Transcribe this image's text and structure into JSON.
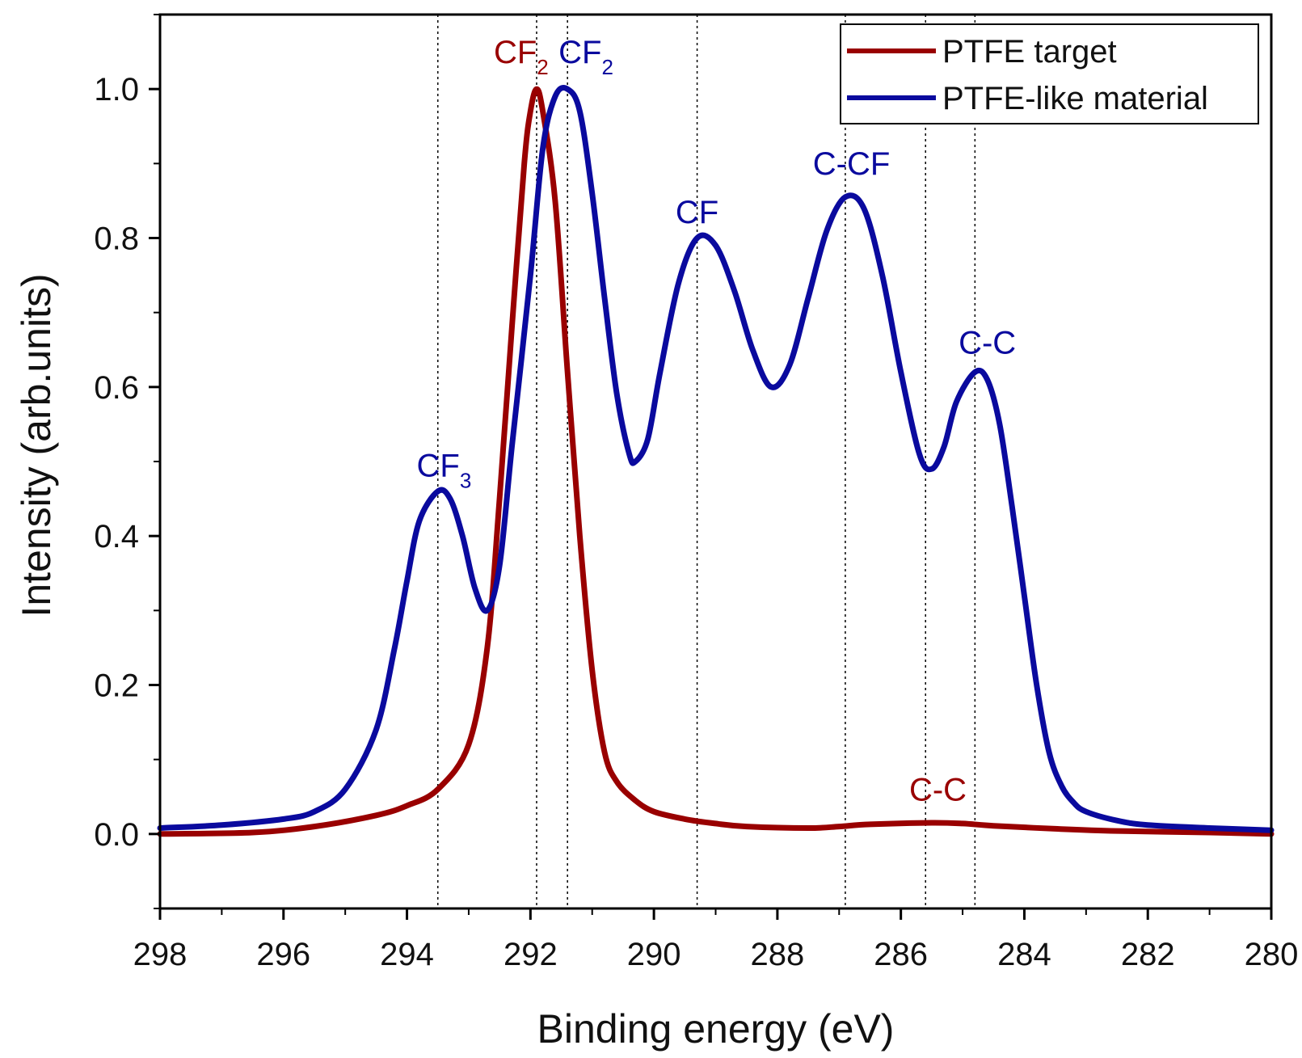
{
  "colors": {
    "ptfe_target": "#990000",
    "ptfe_like": "#0a0a9e",
    "axis": "#000000"
  },
  "chart_data": {
    "type": "line",
    "xlabel": "Binding energy (eV)",
    "ylabel": "Intensity (arb.units)",
    "xlim": [
      298,
      280
    ],
    "ylim": [
      -0.1,
      1.1
    ],
    "xticks": [
      298,
      296,
      294,
      292,
      290,
      288,
      286,
      284,
      282,
      280
    ],
    "yticks": [
      0.0,
      0.2,
      0.4,
      0.6,
      0.8,
      1.0
    ],
    "legend_position": "top-right",
    "reference_lines": [
      293.5,
      291.9,
      291.4,
      289.3,
      286.9,
      285.6,
      284.8
    ],
    "series": [
      {
        "name": "PTFE target",
        "color": "#990000",
        "points": [
          [
            298,
            0.0
          ],
          [
            296.5,
            0.002
          ],
          [
            295.5,
            0.01
          ],
          [
            294.5,
            0.025
          ],
          [
            294.0,
            0.038
          ],
          [
            293.5,
            0.06
          ],
          [
            293.0,
            0.12
          ],
          [
            292.7,
            0.25
          ],
          [
            292.5,
            0.45
          ],
          [
            292.3,
            0.68
          ],
          [
            292.1,
            0.9
          ],
          [
            292.0,
            0.97
          ],
          [
            291.9,
            1.0
          ],
          [
            291.8,
            0.97
          ],
          [
            291.6,
            0.85
          ],
          [
            291.4,
            0.62
          ],
          [
            291.2,
            0.4
          ],
          [
            291.0,
            0.22
          ],
          [
            290.8,
            0.11
          ],
          [
            290.6,
            0.07
          ],
          [
            290.3,
            0.045
          ],
          [
            290.0,
            0.03
          ],
          [
            289.5,
            0.02
          ],
          [
            289.0,
            0.014
          ],
          [
            288.5,
            0.01
          ],
          [
            287.5,
            0.008
          ],
          [
            287.0,
            0.01
          ],
          [
            286.5,
            0.013
          ],
          [
            285.5,
            0.015
          ],
          [
            285.0,
            0.014
          ],
          [
            284.5,
            0.011
          ],
          [
            283.5,
            0.007
          ],
          [
            282.5,
            0.004
          ],
          [
            281.0,
            0.002
          ],
          [
            280.0,
            0.0
          ]
        ]
      },
      {
        "name": "PTFE-like material",
        "color": "#0a0a9e",
        "points": [
          [
            298,
            0.008
          ],
          [
            297,
            0.012
          ],
          [
            296,
            0.02
          ],
          [
            295.5,
            0.03
          ],
          [
            295.0,
            0.06
          ],
          [
            294.5,
            0.14
          ],
          [
            294.2,
            0.25
          ],
          [
            294.0,
            0.34
          ],
          [
            293.8,
            0.42
          ],
          [
            293.5,
            0.46
          ],
          [
            293.3,
            0.45
          ],
          [
            293.1,
            0.4
          ],
          [
            292.9,
            0.33
          ],
          [
            292.7,
            0.3
          ],
          [
            292.5,
            0.36
          ],
          [
            292.3,
            0.52
          ],
          [
            292.0,
            0.75
          ],
          [
            291.8,
            0.92
          ],
          [
            291.6,
            0.99
          ],
          [
            291.4,
            1.0
          ],
          [
            291.2,
            0.97
          ],
          [
            291.0,
            0.86
          ],
          [
            290.8,
            0.72
          ],
          [
            290.6,
            0.59
          ],
          [
            290.4,
            0.51
          ],
          [
            290.3,
            0.5
          ],
          [
            290.1,
            0.53
          ],
          [
            289.9,
            0.62
          ],
          [
            289.6,
            0.74
          ],
          [
            289.3,
            0.8
          ],
          [
            289.0,
            0.79
          ],
          [
            288.7,
            0.73
          ],
          [
            288.4,
            0.65
          ],
          [
            288.1,
            0.6
          ],
          [
            287.8,
            0.63
          ],
          [
            287.5,
            0.72
          ],
          [
            287.2,
            0.81
          ],
          [
            286.9,
            0.855
          ],
          [
            286.6,
            0.84
          ],
          [
            286.3,
            0.75
          ],
          [
            286.0,
            0.62
          ],
          [
            285.7,
            0.51
          ],
          [
            285.5,
            0.49
          ],
          [
            285.3,
            0.52
          ],
          [
            285.1,
            0.58
          ],
          [
            284.8,
            0.62
          ],
          [
            284.6,
            0.61
          ],
          [
            284.4,
            0.55
          ],
          [
            284.2,
            0.44
          ],
          [
            284.0,
            0.32
          ],
          [
            283.8,
            0.2
          ],
          [
            283.6,
            0.11
          ],
          [
            283.4,
            0.065
          ],
          [
            283.2,
            0.042
          ],
          [
            283.0,
            0.03
          ],
          [
            282.5,
            0.018
          ],
          [
            282.0,
            0.012
          ],
          [
            281.0,
            0.008
          ],
          [
            280.0,
            0.005
          ]
        ]
      }
    ],
    "annotations": [
      {
        "label": "CF",
        "sub": "2",
        "color": "#990000",
        "x": 292.15,
        "y": 1.035
      },
      {
        "label": "CF",
        "sub": "2",
        "color": "#0a0a9e",
        "x": 291.1,
        "y": 1.035
      },
      {
        "label": "CF",
        "sub": "3",
        "color": "#0a0a9e",
        "x": 293.4,
        "y": 0.48
      },
      {
        "label": "CF",
        "sub": "",
        "color": "#0a0a9e",
        "x": 289.3,
        "y": 0.82
      },
      {
        "label": "C-CF",
        "sub": "",
        "color": "#0a0a9e",
        "x": 286.8,
        "y": 0.885
      },
      {
        "label": "C-C",
        "sub": "",
        "color": "#0a0a9e",
        "x": 284.6,
        "y": 0.645
      },
      {
        "label": "C-C",
        "sub": "",
        "color": "#990000",
        "x": 285.4,
        "y": 0.045
      }
    ]
  }
}
